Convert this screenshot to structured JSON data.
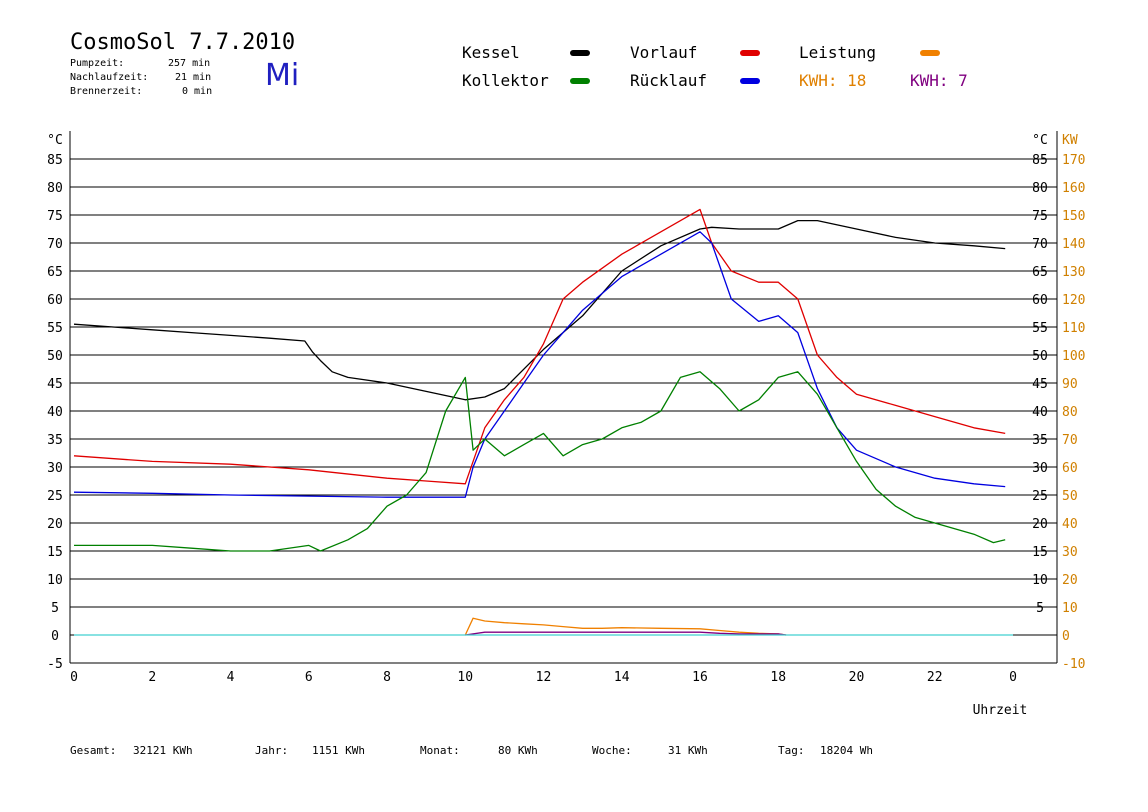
{
  "header": {
    "title": "CosmoSol 7.7.2010",
    "day": "Mi",
    "stats": [
      {
        "label": "Pumpzeit:",
        "value": "257 min"
      },
      {
        "label": "Nachlaufzeit:",
        "value": "21 min"
      },
      {
        "label": "Brennerzeit:",
        "value": "0 min"
      }
    ]
  },
  "legend": {
    "items": [
      {
        "label": "Kessel",
        "color": "#000000"
      },
      {
        "label": "Vorlauf",
        "color": "#e00000"
      },
      {
        "label": "Leistung",
        "color": "#f08000"
      },
      {
        "label": "Kollektor",
        "color": "#008000"
      },
      {
        "label": "Rücklauf",
        "color": "#0000e0"
      }
    ],
    "kwh": [
      {
        "text": "KWH: 18",
        "color": "#e08000"
      },
      {
        "text": "KWH: 7",
        "color": "#800080"
      }
    ]
  },
  "footer": [
    {
      "label": "Gesamt:",
      "value": "32121 KWh"
    },
    {
      "label": "Jahr:",
      "value": "1151 KWh"
    },
    {
      "label": "Monat:",
      "value": "80 KWh"
    },
    {
      "label": "Woche:",
      "value": "31 KWh"
    },
    {
      "label": "Tag:",
      "value": "18204 Wh"
    }
  ],
  "chart_data": {
    "type": "line",
    "xlabel": "Uhrzeit",
    "ylabel_left": "°C",
    "ylabel_right_temp": "°C",
    "ylabel_right_power": "KW",
    "xlim": [
      0,
      24
    ],
    "x_ticks": [
      "0",
      "2",
      "4",
      "6",
      "8",
      "10",
      "12",
      "14",
      "16",
      "18",
      "20",
      "22",
      "0"
    ],
    "ylim": [
      -5,
      85
    ],
    "y_ticks_left": [
      -5,
      0,
      5,
      10,
      15,
      20,
      25,
      30,
      35,
      40,
      45,
      50,
      55,
      60,
      65,
      70,
      75,
      80,
      85
    ],
    "y_ticks_right_temp": [
      5,
      10,
      15,
      20,
      25,
      30,
      35,
      40,
      45,
      50,
      55,
      60,
      65,
      70,
      75,
      80,
      85
    ],
    "y_ticks_right_power": [
      -10,
      0,
      10,
      20,
      30,
      40,
      50,
      60,
      70,
      80,
      90,
      100,
      110,
      120,
      130,
      140,
      150,
      160,
      170
    ],
    "grid": "horizontal",
    "series": [
      {
        "name": "Kessel",
        "color": "#000000",
        "x": [
          0,
          1,
          2,
          3,
          4,
          5,
          5.9,
          6.1,
          6.3,
          6.6,
          7,
          8,
          9,
          10,
          10.5,
          11,
          12,
          13,
          14,
          15,
          16,
          16.3,
          17,
          18,
          18.5,
          19,
          20,
          21,
          22,
          23,
          23.8
        ],
        "y": [
          55.5,
          55,
          54.5,
          54,
          53.5,
          53,
          52.5,
          50.5,
          49,
          47,
          46,
          45,
          43.5,
          42,
          42.5,
          44,
          51,
          57,
          65,
          69.5,
          72.5,
          72.8,
          72.5,
          72.5,
          74,
          74,
          72.5,
          71,
          70,
          69.5,
          69
        ]
      },
      {
        "name": "Vorlauf",
        "color": "#e00000",
        "x": [
          0,
          2,
          4,
          6,
          8,
          9,
          10,
          10.5,
          11,
          11.5,
          12,
          12.5,
          13,
          14,
          15,
          16,
          16.3,
          16.8,
          17.5,
          18,
          18.5,
          19,
          19.5,
          20,
          21,
          22,
          23,
          23.8
        ],
        "y": [
          32,
          31,
          30.5,
          29.5,
          28,
          27.5,
          27,
          37,
          42,
          46,
          52,
          60,
          63,
          68,
          72,
          76,
          70,
          65,
          63,
          63,
          60,
          50,
          46,
          43,
          41,
          39,
          37,
          36
        ]
      },
      {
        "name": "Rücklauf",
        "color": "#0000e0",
        "x": [
          0,
          2,
          4,
          6,
          8,
          9,
          10,
          10.2,
          10.5,
          11,
          11.5,
          12,
          12.5,
          13,
          13.5,
          14,
          15,
          16,
          16.3,
          16.8,
          17.5,
          18,
          18.5,
          19,
          19.5,
          20,
          21,
          22,
          23,
          23.8
        ],
        "y": [
          25.5,
          25.3,
          25,
          24.8,
          24.6,
          24.6,
          24.6,
          30,
          35,
          40,
          45,
          50,
          54,
          58,
          61,
          64,
          68,
          72,
          70,
          60,
          56,
          57,
          54,
          44,
          37,
          33,
          30,
          28,
          27,
          26.5
        ]
      },
      {
        "name": "Kollektor",
        "color": "#008000",
        "x": [
          0,
          1,
          2,
          3,
          4,
          5,
          6,
          6.3,
          7,
          7.5,
          8,
          8.5,
          9,
          9.5,
          10,
          10.2,
          10.5,
          11,
          11.5,
          12,
          12.5,
          13,
          13.5,
          14,
          14.5,
          15,
          15.5,
          16,
          16.5,
          17,
          17.5,
          18,
          18.5,
          19,
          19.5,
          20,
          20.5,
          21,
          21.5,
          22,
          22.5,
          23,
          23.5,
          23.8
        ],
        "y": [
          16,
          16,
          16,
          15.5,
          15,
          15,
          16,
          15,
          17,
          19,
          23,
          25,
          29,
          40,
          46,
          33,
          35,
          32,
          34,
          36,
          32,
          34,
          35,
          37,
          38,
          40,
          46,
          47,
          44,
          40,
          42,
          46,
          47,
          43,
          37,
          31,
          26,
          23,
          21,
          20,
          19,
          18,
          16.5,
          17
        ]
      },
      {
        "name": "Leistung",
        "color": "#f08000",
        "x": [
          10,
          10.2,
          10.5,
          11,
          11.5,
          12,
          12.5,
          13,
          13.5,
          14,
          15,
          16,
          16.5,
          17,
          17.5,
          18,
          18.2
        ],
        "y": [
          0,
          3,
          2.5,
          2.2,
          2,
          1.8,
          1.5,
          1.2,
          1.2,
          1.3,
          1.2,
          1.1,
          0.8,
          0.5,
          0.3,
          0.2,
          0
        ]
      },
      {
        "name": "Ertrag",
        "color": "#800080",
        "x": [
          10,
          10.5,
          11,
          12,
          12.5,
          13,
          13.5,
          14,
          15,
          16,
          16.5,
          17,
          18,
          18.2
        ],
        "y": [
          0,
          0.5,
          0.5,
          0.5,
          0.5,
          0.5,
          0.5,
          0.5,
          0.5,
          0.5,
          0.3,
          0.2,
          0.2,
          0
        ]
      },
      {
        "name": "Baseline",
        "color": "#40d0d0",
        "x": [
          0,
          24
        ],
        "y": [
          0,
          0
        ]
      }
    ]
  }
}
